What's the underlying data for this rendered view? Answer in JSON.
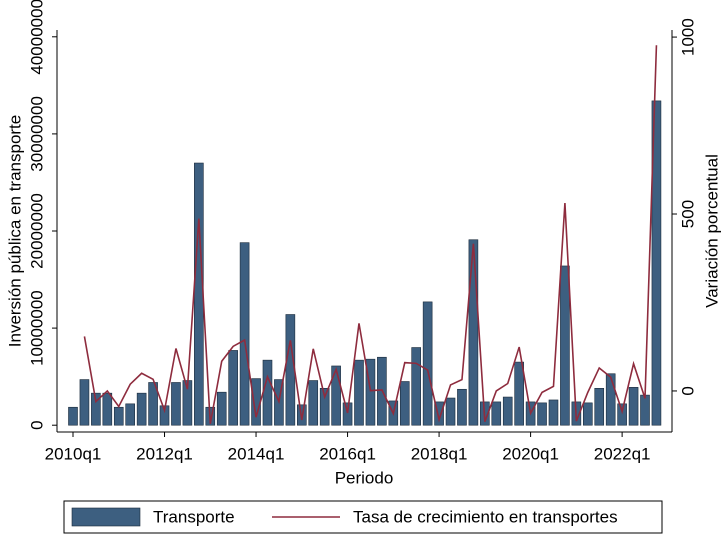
{
  "chart_data": {
    "type": "bar-line",
    "xlabel": "Periodo",
    "ylabel": "Inversión pública en transporte",
    "ylabel_color": "#3b3bf5",
    "y2label": "Variación porcentual",
    "y2label_color": "#e8474d",
    "categories": [
      "2010q1",
      null,
      null,
      null,
      null,
      null,
      null,
      null,
      "2012q1",
      null,
      null,
      null,
      null,
      null,
      null,
      null,
      "2014q1",
      null,
      null,
      null,
      null,
      null,
      null,
      null,
      "2016q1",
      null,
      null,
      null,
      null,
      null,
      null,
      null,
      "2018q1",
      null,
      null,
      null,
      null,
      null,
      null,
      null,
      "2020q1",
      null,
      null,
      null,
      null,
      null,
      null,
      null,
      "2022q1",
      null,
      null,
      null
    ],
    "series": [
      {
        "name": "Transporte",
        "type": "bar",
        "color": "#3d5f80",
        "values": [
          1850000,
          4700000,
          3300000,
          3300000,
          1850000,
          2200000,
          3300000,
          4400000,
          2000000,
          4400000,
          4600000,
          27000000,
          1850000,
          3400000,
          7700000,
          18800000,
          4800000,
          6700000,
          4700000,
          11400000,
          2100000,
          4600000,
          3800000,
          6100000,
          2300000,
          6700000,
          6800000,
          7000000,
          2500000,
          4500000,
          8000000,
          12700000,
          2400000,
          2800000,
          3700000,
          19100000,
          2400000,
          2400000,
          2900000,
          6500000,
          2400000,
          2300000,
          2600000,
          16400000,
          2400000,
          2300000,
          3800000,
          5300000,
          2200000,
          3900000,
          3100000,
          33400000
        ]
      },
      {
        "name": "Tasa de crecimiento en transportes",
        "type": "line",
        "axis": "y2",
        "color": "#8e2c3e",
        "values": [
          null,
          154,
          -30,
          0,
          -44,
          19,
          50,
          33,
          -55,
          120,
          5,
          487,
          -93,
          84,
          126,
          144,
          -74,
          40,
          -30,
          143,
          -82,
          119,
          -17,
          61,
          -62,
          191,
          1,
          3,
          -64,
          80,
          78,
          59,
          -81,
          17,
          32,
          416,
          -87,
          0,
          21,
          124,
          -63,
          -4,
          13,
          531,
          -85,
          -4,
          65,
          39,
          -58,
          77,
          -21,
          977
        ]
      }
    ],
    "ylim": [
      -700000,
      40700000
    ],
    "yticks": [
      0,
      10000000,
      20000000,
      30000000,
      40000000
    ],
    "y2lim": [
      -116,
      1020
    ],
    "y2ticks": [
      0,
      500,
      1000
    ],
    "grid": false
  }
}
